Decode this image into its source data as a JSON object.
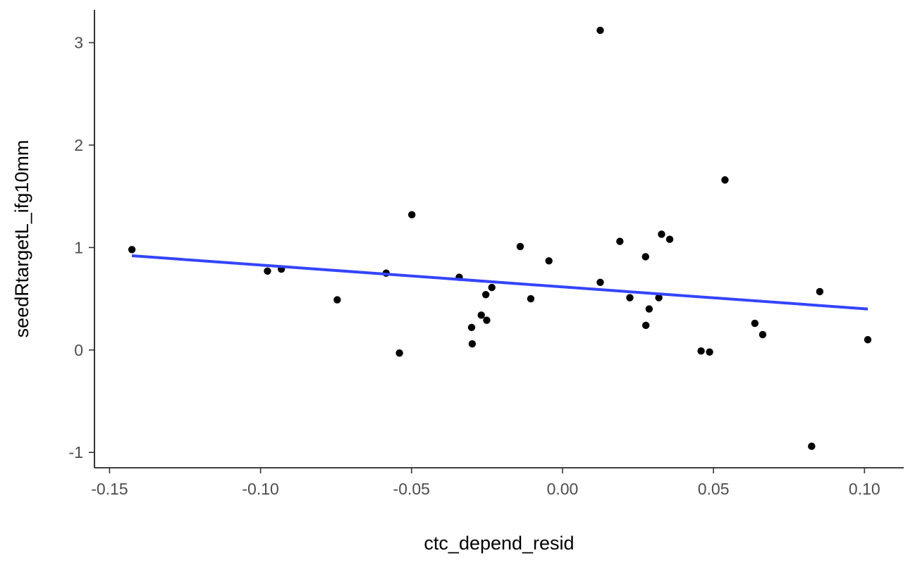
{
  "chart_data": {
    "type": "scatter",
    "xlabel": "ctc_depend_resid",
    "ylabel": "seedRtargetL_ifg10mm",
    "xlim": [
      -0.155,
      0.113
    ],
    "ylim": [
      -1.15,
      3.32
    ],
    "x_ticks": [
      -0.15,
      -0.1,
      -0.05,
      0.0,
      0.05,
      0.1
    ],
    "x_tick_labels": [
      "-0.15",
      "-0.10",
      "-0.05",
      "0.00",
      "0.05",
      "0.10"
    ],
    "y_ticks": [
      -1,
      0,
      1,
      2,
      3
    ],
    "y_tick_labels": [
      "-1",
      "0",
      "1",
      "2",
      "3"
    ],
    "grid": false,
    "legend": "none",
    "point_color": "#000000",
    "fit_line_color": "#3344FF",
    "points": [
      {
        "x": -0.1426,
        "y": 0.98
      },
      {
        "x": -0.0977,
        "y": 0.77
      },
      {
        "x": -0.0931,
        "y": 0.79
      },
      {
        "x": -0.0746,
        "y": 0.49
      },
      {
        "x": -0.0584,
        "y": 0.75
      },
      {
        "x": -0.054,
        "y": -0.03
      },
      {
        "x": -0.0499,
        "y": 1.32
      },
      {
        "x": -0.0342,
        "y": 0.71
      },
      {
        "x": -0.0301,
        "y": 0.22
      },
      {
        "x": -0.0299,
        "y": 0.06
      },
      {
        "x": -0.0269,
        "y": 0.34
      },
      {
        "x": -0.0254,
        "y": 0.54
      },
      {
        "x": -0.0251,
        "y": 0.29
      },
      {
        "x": -0.0234,
        "y": 0.61
      },
      {
        "x": -0.014,
        "y": 1.01
      },
      {
        "x": -0.0105,
        "y": 0.5
      },
      {
        "x": -0.0045,
        "y": 0.87
      },
      {
        "x": 0.0125,
        "y": 3.12
      },
      {
        "x": 0.0125,
        "y": 0.66
      },
      {
        "x": 0.019,
        "y": 1.06
      },
      {
        "x": 0.0223,
        "y": 0.51
      },
      {
        "x": 0.0275,
        "y": 0.91
      },
      {
        "x": 0.0276,
        "y": 0.24
      },
      {
        "x": 0.0287,
        "y": 0.4
      },
      {
        "x": 0.0319,
        "y": 0.51
      },
      {
        "x": 0.0328,
        "y": 1.13
      },
      {
        "x": 0.0355,
        "y": 1.08
      },
      {
        "x": 0.0459,
        "y": -0.01
      },
      {
        "x": 0.0487,
        "y": -0.02
      },
      {
        "x": 0.0538,
        "y": 1.66
      },
      {
        "x": 0.0637,
        "y": 0.26
      },
      {
        "x": 0.0663,
        "y": 0.15
      },
      {
        "x": 0.0825,
        "y": -0.94
      },
      {
        "x": 0.0852,
        "y": 0.57
      },
      {
        "x": 0.1011,
        "y": 0.1
      }
    ],
    "fit_line": {
      "x": [
        -0.1426,
        0.1011
      ],
      "y": [
        0.92,
        0.4
      ]
    }
  }
}
